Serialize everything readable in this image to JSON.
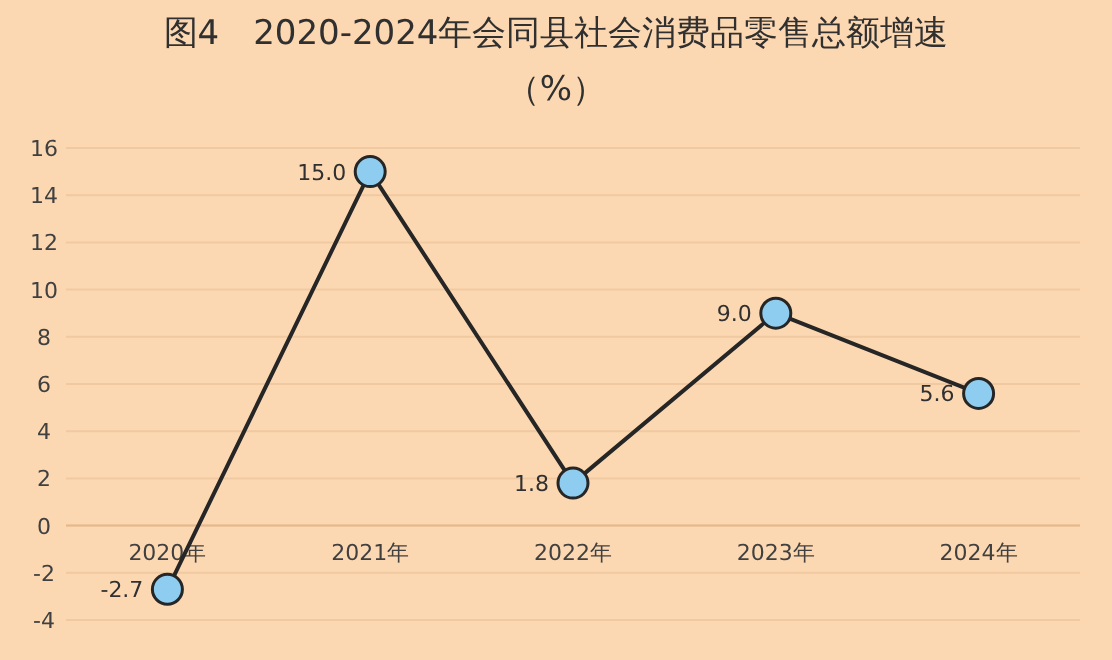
{
  "chart_data": {
    "type": "line",
    "title": "图4　2020-2024年会同县社会消费品零售总额增速",
    "subtitle": "（%）",
    "categories": [
      "2020年",
      "2021年",
      "2022年",
      "2023年",
      "2024年"
    ],
    "series": [
      {
        "color": "#262626",
        "values": [
          -2.7,
          15.0,
          1.8,
          9.0,
          5.6
        ],
        "value_labels": [
          "-2.7",
          "15.0",
          "1.8",
          "9.0",
          "5.6"
        ]
      }
    ],
    "ylim": [
      -4,
      16
    ],
    "yticks": [
      -4,
      -2,
      0,
      2,
      4,
      6,
      8,
      10,
      12,
      14,
      16
    ],
    "grid": "y",
    "marker": "circle",
    "line_style": "solid"
  }
}
